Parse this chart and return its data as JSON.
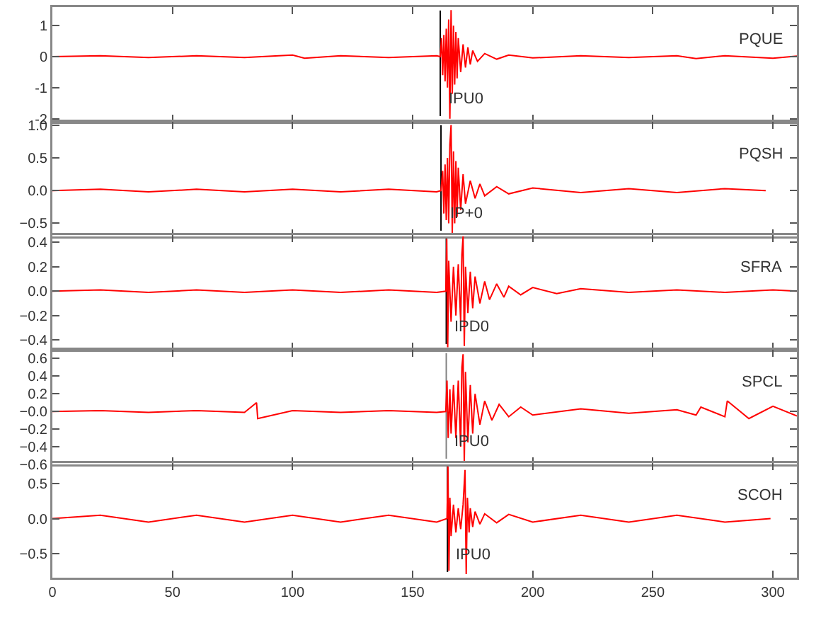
{
  "chart_data": [
    {
      "type": "line",
      "tick_labels": "y",
      "xlim": [
        0,
        310
      ],
      "xticks": [
        0,
        50,
        100,
        150,
        200,
        250,
        300
      ],
      "ylim": [
        -2.1,
        1.6
      ],
      "yticks": [
        -2,
        -1,
        0,
        1
      ],
      "ref_lines": [
        {
          "axis": "x",
          "value": 161.5,
          "label": "IPU0",
          "color": "#000000"
        }
      ],
      "series": [
        {
          "name": "PQUE",
          "color": "#ff0000",
          "x": [
            0,
            20,
            40,
            60,
            80,
            100,
            105,
            120,
            140,
            160,
            161.5,
            162,
            162.5,
            163,
            163.5,
            164,
            164.5,
            165,
            165.5,
            166,
            166.5,
            167,
            167.5,
            168,
            168.5,
            169,
            170,
            171,
            172,
            173,
            174,
            175,
            177,
            180,
            185,
            190,
            200,
            220,
            240,
            260,
            268,
            280,
            300,
            310
          ],
          "values": [
            0,
            0.03,
            -0.03,
            0.03,
            -0.03,
            0.05,
            -0.05,
            0.03,
            -0.03,
            0.03,
            0,
            0.6,
            -0.6,
            0.7,
            -0.8,
            0.9,
            -1.0,
            1.2,
            -2.0,
            1.5,
            -1.2,
            1.0,
            -0.9,
            0.8,
            -0.7,
            0.6,
            -0.5,
            0.4,
            -0.35,
            0.3,
            -0.25,
            0.2,
            -0.15,
            0.1,
            -0.08,
            0.05,
            -0.04,
            0.03,
            -0.03,
            0.03,
            -0.06,
            0.03,
            -0.05,
            0.02
          ]
        }
      ]
    },
    {
      "type": "line",
      "tick_labels": "y",
      "xlim": [
        0,
        310
      ],
      "xticks": [
        0,
        50,
        100,
        150,
        200,
        250,
        300
      ],
      "ylim": [
        -0.7,
        1.05
      ],
      "yticks": [
        {
          "value": -0.5,
          "label": "−0.5"
        },
        {
          "value": 0,
          "label": "0.0"
        },
        0.5,
        {
          "value": 1,
          "label": "1.0"
        }
      ],
      "ref_lines": [
        {
          "axis": "x",
          "value": 161.8,
          "label": "IP+0",
          "color": "#000000"
        }
      ],
      "series": [
        {
          "name": "PQSH",
          "color": "#ff0000",
          "x": [
            0,
            20,
            40,
            60,
            80,
            100,
            120,
            140,
            160,
            161.8,
            162.5,
            163,
            163.5,
            164,
            164.5,
            165,
            165.5,
            166,
            166.5,
            167,
            167.5,
            168,
            168.5,
            169,
            170,
            171,
            172,
            174,
            176,
            178,
            180,
            185,
            190,
            200,
            220,
            240,
            260,
            280,
            297
          ],
          "values": [
            0,
            0.02,
            -0.02,
            0.02,
            -0.02,
            0.02,
            -0.02,
            0.02,
            -0.02,
            0,
            0.3,
            -0.35,
            0.4,
            -0.45,
            0.5,
            -0.5,
            0.7,
            1.0,
            -0.65,
            0.6,
            -0.5,
            0.45,
            -0.4,
            0.35,
            -0.3,
            0.25,
            -0.2,
            0.15,
            -0.12,
            0.1,
            -0.08,
            0.06,
            -0.05,
            0.04,
            -0.03,
            0.03,
            -0.03,
            0.03,
            0
          ]
        }
      ]
    },
    {
      "type": "line",
      "tick_labels": "y",
      "xlim": [
        0,
        310
      ],
      "xticks": [
        0,
        50,
        100,
        150,
        200,
        250,
        300
      ],
      "ylim": [
        -0.48,
        0.46
      ],
      "yticks": [
        {
          "value": -0.4,
          "label": "−0.4"
        },
        {
          "value": -0.2,
          "label": "−0.2"
        },
        {
          "value": 0,
          "label": "0.0"
        },
        0.2,
        0.4
      ],
      "ref_lines": [
        {
          "axis": "x",
          "value": 164,
          "label": "IPD0",
          "color": "#000000"
        }
      ],
      "series": [
        {
          "name": "SFRA",
          "color": "#ff0000",
          "x": [
            0,
            20,
            40,
            60,
            80,
            100,
            120,
            140,
            160,
            163.8,
            164.2,
            164.6,
            165,
            166,
            167,
            168,
            169,
            170,
            170.5,
            171,
            171.5,
            172,
            173,
            174,
            175,
            176,
            178,
            180,
            182,
            185,
            188,
            190,
            195,
            200,
            210,
            220,
            240,
            260,
            280,
            300,
            310
          ],
          "values": [
            0,
            0.01,
            -0.01,
            0.01,
            -0.01,
            0.01,
            -0.01,
            0.01,
            -0.01,
            0,
            0.43,
            -0.46,
            0.25,
            -0.25,
            0.2,
            -0.2,
            0.22,
            -0.25,
            0.3,
            0.45,
            -0.45,
            0.2,
            -0.18,
            0.16,
            -0.14,
            0.12,
            -0.1,
            0.08,
            -0.07,
            0.06,
            -0.05,
            0.04,
            -0.03,
            0.03,
            -0.02,
            0.02,
            -0.01,
            0.01,
            -0.01,
            0.01,
            0
          ]
        }
      ]
    },
    {
      "type": "line",
      "tick_labels": "y",
      "xlim": [
        0,
        310
      ],
      "xticks": [
        0,
        50,
        100,
        150,
        200,
        250,
        300
      ],
      "ylim": [
        -0.6,
        0.7
      ],
      "yticks": [
        {
          "value": -0.6,
          "label": "−0.6"
        },
        {
          "value": -0.4,
          "label": "−0.4"
        },
        {
          "value": -0.2,
          "label": "−0.2"
        },
        {
          "value": 0,
          "label": "−0.0"
        },
        0.2,
        0.4,
        0.6
      ],
      "ref_lines": [
        {
          "axis": "x",
          "value": 164,
          "label": "IPU0",
          "color": "#808080"
        }
      ],
      "series": [
        {
          "name": "SPCL",
          "color": "#ff0000",
          "x": [
            0,
            20,
            40,
            60,
            80,
            85,
            85.5,
            100,
            120,
            140,
            160,
            163.8,
            164.3,
            164.8,
            165.5,
            166,
            167,
            168,
            169,
            170,
            170.5,
            171,
            171.5,
            172,
            173,
            174,
            175,
            176,
            178,
            180,
            183,
            186,
            190,
            195,
            200,
            220,
            240,
            260,
            268,
            270,
            280,
            281,
            290,
            300,
            310
          ],
          "values": [
            0,
            0.01,
            -0.01,
            0.01,
            -0.01,
            0.1,
            -0.08,
            0.01,
            -0.01,
            0.01,
            -0.01,
            0,
            0.35,
            -0.3,
            0.25,
            -0.25,
            0.3,
            -0.3,
            0.35,
            -0.4,
            0.5,
            0.65,
            -0.58,
            0.45,
            -0.35,
            0.3,
            -0.25,
            0.2,
            -0.15,
            0.12,
            -0.1,
            0.08,
            -0.06,
            0.05,
            -0.04,
            0.03,
            -0.02,
            0.02,
            -0.04,
            0.05,
            -0.06,
            0.12,
            -0.08,
            0.06,
            -0.05
          ]
        }
      ]
    },
    {
      "type": "line",
      "xlim": [
        0,
        310
      ],
      "xticks": [
        0,
        50,
        100,
        150,
        200,
        250,
        300
      ],
      "ylim": [
        -0.85,
        0.8
      ],
      "yticks": [
        {
          "value": -0.5,
          "label": "−0.5"
        },
        {
          "value": 0,
          "label": "0.0"
        },
        0.5
      ],
      "ref_lines": [
        {
          "axis": "x",
          "value": 164.5,
          "label": "IPU0",
          "color": "#000000"
        }
      ],
      "series": [
        {
          "name": "SCOH",
          "color": "#ff0000",
          "x": [
            0,
            20,
            40,
            60,
            80,
            100,
            120,
            140,
            160,
            164.3,
            164.7,
            165.1,
            165.5,
            166,
            167,
            168,
            169,
            170,
            171,
            171.8,
            172.3,
            172.8,
            173.5,
            174,
            175,
            176,
            178,
            180,
            185,
            190,
            200,
            220,
            240,
            260,
            280,
            299
          ],
          "values": [
            0,
            0.05,
            -0.05,
            0.05,
            -0.05,
            0.05,
            -0.05,
            0.05,
            -0.05,
            0,
            0.75,
            -0.75,
            0.3,
            -0.25,
            0.2,
            -0.2,
            0.15,
            -0.15,
            0.2,
            0.7,
            -0.8,
            0.3,
            -0.2,
            0.15,
            -0.12,
            0.1,
            -0.08,
            0.07,
            -0.06,
            0.06,
            -0.05,
            0.05,
            -0.05,
            0.05,
            -0.05,
            0
          ]
        }
      ]
    }
  ]
}
